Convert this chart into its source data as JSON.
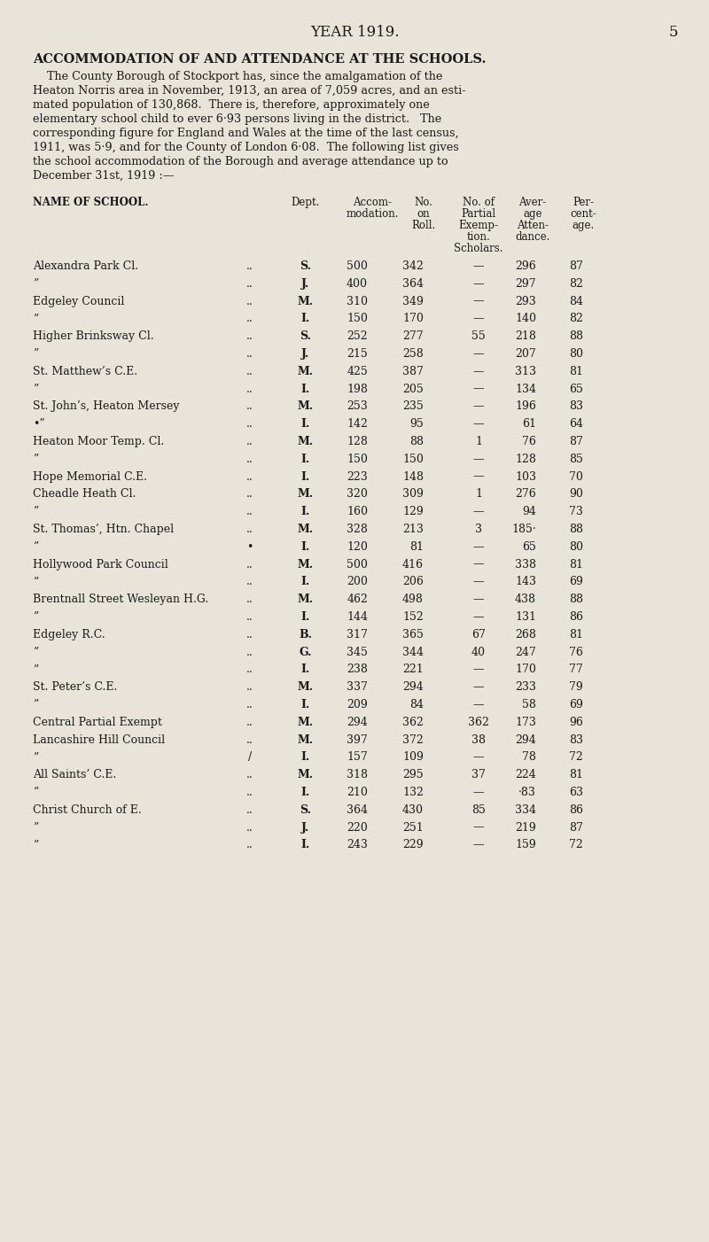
{
  "page_title": "YEAR 1919.",
  "page_number": "5",
  "section_title": "ACCOMMODATION OF AND ATTENDANCE AT THE SCHOOLS.",
  "intro_lines": [
    "    The County Borough of Stockport has, since the amalgamation of the",
    "Heaton Norris area in November, 1913, an area of 7,059 acres, and an esti-",
    "mated population of 130,868.  There is, therefore, approximately one",
    "elementary school child to ever 6·93 persons living in the district.   The",
    "corresponding figure for England and Wales at the time of the last census,",
    "1911, was 5·9, and for the County of London 6·08.  The following list gives",
    "the school accommodation of the Borough and average attendance up to",
    "December 31st, 1919 :—"
  ],
  "bg_color": "#e8e4da",
  "text_color": "#1a1a1a",
  "rows": [
    [
      "Alexandra Park Cl.",
      "..",
      "S.",
      "500",
      "342",
      "—",
      "296",
      "87"
    ],
    [
      "”",
      "..",
      "J.",
      "400",
      "364",
      "—",
      "297",
      "82"
    ],
    [
      "Edgeley Council",
      "..",
      "M.",
      "310",
      "349",
      "—",
      "293",
      "84"
    ],
    [
      "”",
      "..",
      "I.",
      "150",
      "170",
      "—",
      "140",
      "82"
    ],
    [
      "Higher Brinksway Cl.",
      "..",
      "S.",
      "252",
      "277",
      "55",
      "218",
      "88"
    ],
    [
      "”",
      "..",
      "J.",
      "215",
      "258",
      "—",
      "207",
      "80"
    ],
    [
      "St. Matthew’s C.E.",
      "..",
      "M.",
      "425",
      "387",
      "—",
      "313",
      "81"
    ],
    [
      "”",
      "..",
      "I.",
      "198",
      "205",
      "—",
      "134",
      "65"
    ],
    [
      "St. John’s, Heaton Mersey",
      "..",
      "M.",
      "253",
      "235",
      "—",
      "196",
      "83"
    ],
    [
      "•”",
      "..",
      "I.",
      "142",
      "95",
      "—",
      "61",
      "64"
    ],
    [
      "Heaton Moor Temp. Cl.",
      "..",
      "M.",
      "128",
      "88",
      "1",
      "76",
      "87"
    ],
    [
      "”",
      "..",
      "I.",
      "150",
      "150",
      "—",
      "128",
      "85"
    ],
    [
      "Hope Memorial C.E.",
      "..",
      "I.",
      "223",
      "148",
      "—",
      "103",
      "70"
    ],
    [
      "Cheadle Heath Cl.",
      "..",
      "M.",
      "320",
      "309",
      "1",
      "276",
      "90"
    ],
    [
      "”",
      "..",
      "I.",
      "160",
      "129",
      "—",
      "94",
      "73"
    ],
    [
      "St. Thomas’, Htn. Chapel",
      "..",
      "M.",
      "328",
      "213",
      "3",
      "185·",
      "88"
    ],
    [
      "”",
      "•",
      "I.",
      "120",
      "81",
      "—",
      "65",
      "80"
    ],
    [
      "Hollywood Park Council",
      "..",
      "M.",
      "500",
      "416",
      "—",
      "338",
      "81"
    ],
    [
      "”",
      "..",
      "I.",
      "200",
      "206",
      "—",
      "143",
      "69"
    ],
    [
      "Brentnall Street Wesleyan H.G.",
      "..",
      "M.",
      "462",
      "498",
      "—",
      "438",
      "88"
    ],
    [
      "”",
      "..",
      "I.",
      "144",
      "152",
      "—",
      "131",
      "86"
    ],
    [
      "Edgeley R.C.",
      "..",
      "B.",
      "317",
      "365",
      "67",
      "268",
      "81"
    ],
    [
      "”",
      "..",
      "G.",
      "345",
      "344",
      "40",
      "247",
      "76"
    ],
    [
      "”",
      "..",
      "I.",
      "238",
      "221",
      "—",
      "170",
      "77"
    ],
    [
      "St. Peter’s C.E.",
      "..",
      "M.",
      "337",
      "294",
      "—",
      "233",
      "79"
    ],
    [
      "”",
      "..",
      "I.",
      "209",
      "84",
      "—",
      "58",
      "69"
    ],
    [
      "Central Partial Exempt",
      "..",
      "M.",
      "294",
      "362",
      "362",
      "173",
      "96"
    ],
    [
      "Lancashire Hill Council",
      "..",
      "M.",
      "397",
      "372",
      "38",
      "294",
      "83"
    ],
    [
      "”",
      "/",
      "I.",
      "157",
      "109",
      "—",
      "78",
      "72"
    ],
    [
      "All Saints’ C.E.",
      "..",
      "M.",
      "318",
      "295",
      "37",
      "224",
      "81"
    ],
    [
      "”",
      "..",
      "I.",
      "210",
      "132",
      "—",
      "·83",
      "63"
    ],
    [
      "Christ Church of E.",
      "..",
      "S.",
      "364",
      "430",
      "85",
      "334",
      "86"
    ],
    [
      "”",
      "..",
      "J.",
      "220",
      "251",
      "—",
      "219",
      "87"
    ],
    [
      "”",
      "..",
      "I.",
      "243",
      "229",
      "—",
      "159",
      "72"
    ]
  ]
}
